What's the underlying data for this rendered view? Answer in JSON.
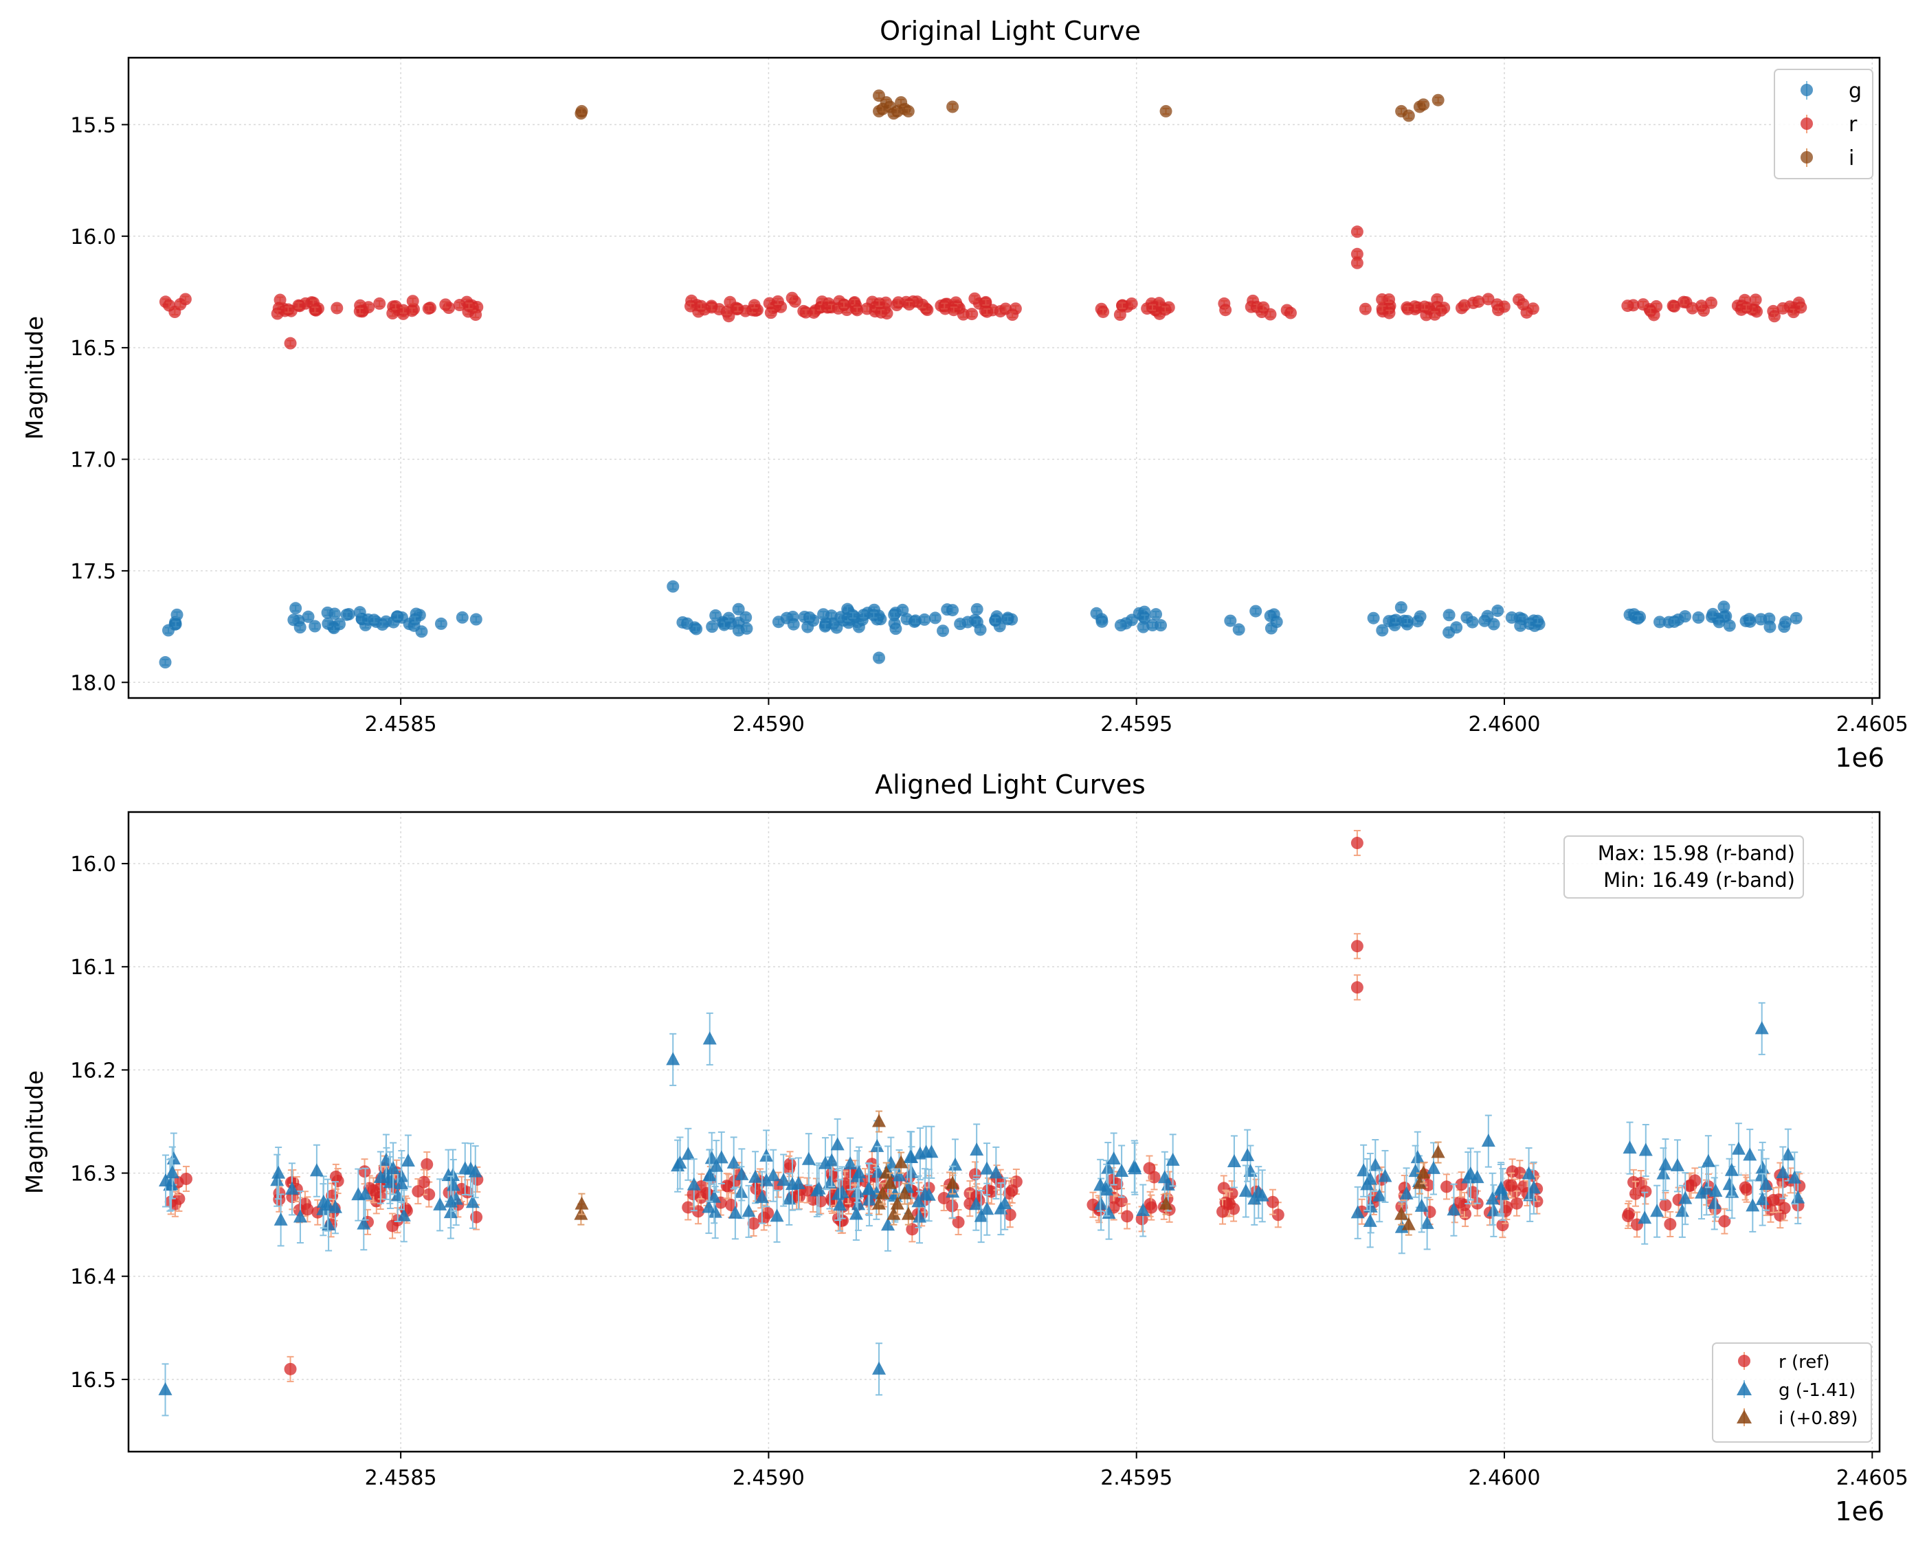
{
  "colors": {
    "g": "#1f77b4",
    "g_err": "#87c1e0",
    "r": "#d62728",
    "r_err": "#f4a582",
    "i": "#8b4513",
    "i_err": "#e0a070",
    "grid": "#d9d9d9"
  },
  "chart_data": [
    {
      "type": "scatter",
      "title": "Original Light Curve",
      "xlabel": "",
      "ylabel": "Magnitude",
      "x_offset_label": "1e6",
      "xlim": [
        2458130,
        2460510
      ],
      "ylim": [
        18.07,
        15.2
      ],
      "y_inverted": true,
      "xticks": [
        2458500,
        2459000,
        2459500,
        2460000,
        2460500
      ],
      "xtick_labels": [
        "2.4585",
        "2.4590",
        "2.4595",
        "2.4600",
        "2.4605"
      ],
      "yticks": [
        15.5,
        16.0,
        16.5,
        17.0,
        17.5,
        18.0
      ],
      "ytick_labels": [
        "15.5",
        "16.0",
        "16.5",
        "17.0",
        "17.5",
        "18.0"
      ],
      "grid": true,
      "legend_position": "top-right",
      "legend": [
        {
          "label": "g",
          "band": "g",
          "marker": "circle"
        },
        {
          "label": "r",
          "band": "r",
          "marker": "circle"
        },
        {
          "label": "i",
          "band": "i",
          "marker": "circle"
        }
      ],
      "series": [
        {
          "name": "g",
          "marker": "circle",
          "mean": 17.72,
          "spread": 0.07,
          "err": 0.01,
          "segments": [
            [
              2458180,
              2458200,
              5
            ],
            [
              2458330,
              2458610,
              36
            ],
            [
              2458870,
              2459180,
              40
            ],
            [
              2459070,
              2459335,
              36
            ],
            [
              2459445,
              2459555,
              14
            ],
            [
              2459615,
              2459700,
              7
            ],
            [
              2459800,
              2460050,
              30
            ],
            [
              2460170,
              2460410,
              28
            ]
          ],
          "outliers": [
            [
              2458180,
              17.91
            ],
            [
              2458870,
              17.57
            ],
            [
              2459150,
              17.89
            ]
          ]
        },
        {
          "name": "r",
          "marker": "circle",
          "mean": 16.32,
          "spread": 0.05,
          "err": 0.01,
          "segments": [
            [
              2458180,
              2458210,
              5
            ],
            [
              2458330,
              2458610,
              44
            ],
            [
              2458870,
              2459170,
              48
            ],
            [
              2459070,
              2459340,
              44
            ],
            [
              2459440,
              2459550,
              18
            ],
            [
              2459610,
              2459710,
              10
            ],
            [
              2459800,
              2460050,
              34
            ],
            [
              2460160,
              2460410,
              32
            ]
          ],
          "outliers": [
            [
              2458350,
              16.48
            ],
            [
              2459800,
              15.98
            ],
            [
              2459800,
              16.08
            ],
            [
              2459800,
              16.12
            ]
          ]
        },
        {
          "name": "i",
          "marker": "circle",
          "mean": 15.43,
          "spread": 0.02,
          "err": 0.01,
          "points": [
            [
              2458745,
              15.45
            ],
            [
              2458746,
              15.44
            ],
            [
              2459150,
              15.44
            ],
            [
              2459155,
              15.43
            ],
            [
              2459160,
              15.4
            ],
            [
              2459165,
              15.42
            ],
            [
              2459170,
              15.45
            ],
            [
              2459175,
              15.44
            ],
            [
              2459180,
              15.4
            ],
            [
              2459185,
              15.43
            ],
            [
              2459150,
              15.37
            ],
            [
              2459190,
              15.44
            ],
            [
              2459250,
              15.42
            ],
            [
              2459540,
              15.44
            ],
            [
              2459860,
              15.44
            ],
            [
              2459870,
              15.46
            ],
            [
              2459885,
              15.42
            ],
            [
              2459890,
              15.41
            ],
            [
              2459910,
              15.39
            ]
          ]
        }
      ]
    },
    {
      "type": "scatter",
      "title": "Aligned Light Curves",
      "xlabel": "",
      "ylabel": "Magnitude",
      "x_offset_label": "1e6",
      "xlim": [
        2458130,
        2460510
      ],
      "ylim": [
        16.57,
        15.95
      ],
      "y_inverted": true,
      "xticks": [
        2458500,
        2459000,
        2459500,
        2460000,
        2460500
      ],
      "xtick_labels": [
        "2.4585",
        "2.4590",
        "2.4595",
        "2.4600",
        "2.4605"
      ],
      "yticks": [
        16.0,
        16.1,
        16.2,
        16.3,
        16.4,
        16.5
      ],
      "ytick_labels": [
        "16.0",
        "16.1",
        "16.2",
        "16.3",
        "16.4",
        "16.5"
      ],
      "grid": true,
      "legend_position": "bottom-right",
      "legend": [
        {
          "label": "r (ref)",
          "band": "r",
          "marker": "circle"
        },
        {
          "label": "g (-1.41)",
          "band": "g",
          "marker": "triangle"
        },
        {
          "label": "i (+0.89)",
          "band": "i",
          "marker": "triangle"
        }
      ],
      "annotation": {
        "position": "top-right",
        "lines": [
          "Max: 15.98 (r-band)",
          "Min: 16.49 (r-band)"
        ]
      },
      "max_mag": 15.98,
      "min_mag": 16.49,
      "offsets": {
        "g": -1.41,
        "i": 0.89
      },
      "series": [
        {
          "name": "r (ref)",
          "band": "r",
          "marker": "circle",
          "mean": 16.32,
          "spread": 0.04,
          "err": 0.012,
          "segments": [
            [
              2458180,
              2458210,
              5
            ],
            [
              2458330,
              2458610,
              44
            ],
            [
              2458870,
              2459170,
              48
            ],
            [
              2459070,
              2459340,
              44
            ],
            [
              2459440,
              2459550,
              18
            ],
            [
              2459610,
              2459710,
              10
            ],
            [
              2459800,
              2460050,
              34
            ],
            [
              2460160,
              2460410,
              32
            ]
          ],
          "outliers": [
            [
              2458350,
              16.49
            ],
            [
              2459800,
              15.98
            ],
            [
              2459800,
              16.08
            ],
            [
              2459800,
              16.12
            ]
          ]
        },
        {
          "name": "g (-1.41)",
          "band": "g",
          "marker": "triangle",
          "mean": 16.31,
          "spread": 0.06,
          "err": 0.025,
          "segments": [
            [
              2458180,
              2458200,
              5
            ],
            [
              2458330,
              2458610,
              36
            ],
            [
              2458870,
              2459180,
              40
            ],
            [
              2459070,
              2459335,
              36
            ],
            [
              2459445,
              2459555,
              14
            ],
            [
              2459615,
              2459700,
              7
            ],
            [
              2459800,
              2460050,
              30
            ],
            [
              2460170,
              2460410,
              28
            ]
          ],
          "outliers": [
            [
              2458180,
              16.51
            ],
            [
              2458870,
              16.19
            ],
            [
              2458920,
              16.17
            ],
            [
              2459150,
              16.49
            ],
            [
              2460350,
              16.16
            ]
          ]
        },
        {
          "name": "i (+0.89)",
          "band": "i",
          "marker": "triangle",
          "mean": 16.33,
          "spread": 0.02,
          "err": 0.01,
          "points": [
            [
              2458745,
              16.34
            ],
            [
              2458746,
              16.33
            ],
            [
              2459150,
              16.33
            ],
            [
              2459155,
              16.32
            ],
            [
              2459160,
              16.3
            ],
            [
              2459165,
              16.31
            ],
            [
              2459170,
              16.34
            ],
            [
              2459175,
              16.33
            ],
            [
              2459180,
              16.29
            ],
            [
              2459185,
              16.32
            ],
            [
              2459150,
              16.25
            ],
            [
              2459190,
              16.34
            ],
            [
              2459250,
              16.31
            ],
            [
              2459540,
              16.33
            ],
            [
              2459860,
              16.34
            ],
            [
              2459870,
              16.35
            ],
            [
              2459885,
              16.31
            ],
            [
              2459890,
              16.3
            ],
            [
              2459910,
              16.28
            ]
          ]
        }
      ]
    }
  ]
}
